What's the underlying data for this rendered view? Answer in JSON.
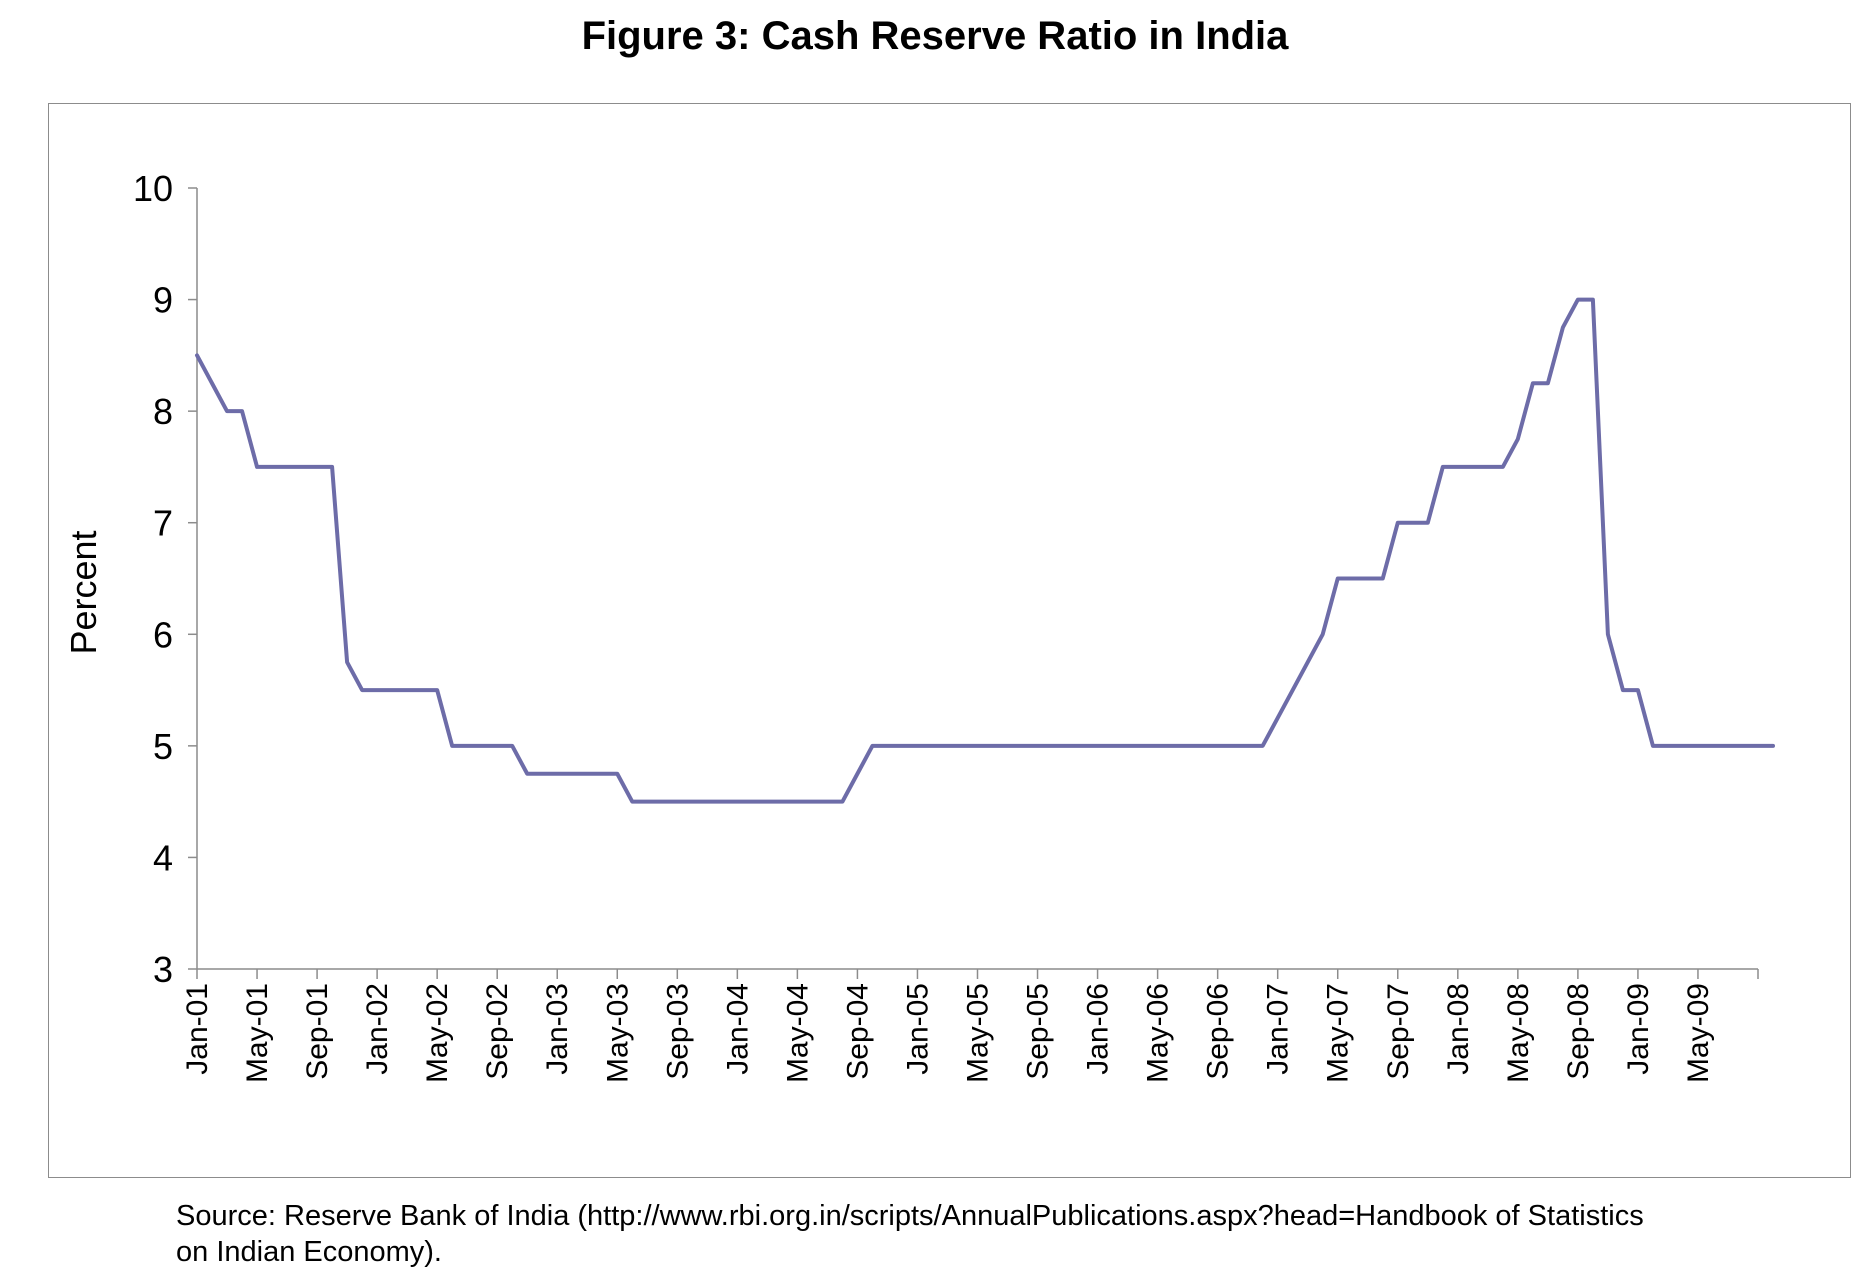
{
  "title": "Figure 3: Cash Reserve Ratio in India",
  "source_lines": [
    "Source: Reserve Bank of India (http://www.rbi.org.in/scripts/AnnualPublications.aspx?head=Handbook of Statistics",
    "on Indian Economy)."
  ],
  "colors": {
    "line": "#6d6ca8",
    "axis": "#8c8c8c",
    "frame": "#8c8c8c"
  },
  "chart_data": {
    "type": "line",
    "title": "Figure 3: Cash Reserve Ratio in India",
    "xlabel": "",
    "ylabel": "Percent",
    "ylim": [
      3,
      10
    ],
    "yticks": [
      3,
      4,
      5,
      6,
      7,
      8,
      9,
      10
    ],
    "grid": false,
    "legend": "none",
    "xtick_labels": [
      "Jan-01",
      "May-01",
      "Sep-01",
      "Jan-02",
      "May-02",
      "Sep-02",
      "Jan-03",
      "May-03",
      "Sep-03",
      "Jan-04",
      "May-04",
      "Sep-04",
      "Jan-05",
      "May-05",
      "Sep-05",
      "Jan-06",
      "May-06",
      "Sep-06",
      "Jan-07",
      "May-07",
      "Sep-07",
      "Jan-08",
      "May-08",
      "Sep-08",
      "Jan-09",
      "May-09"
    ],
    "series": [
      {
        "x": [
          "Jan-01",
          "Feb-01",
          "Mar-01",
          "Apr-01",
          "May-01",
          "Jun-01",
          "Jul-01",
          "Aug-01",
          "Sep-01",
          "Oct-01",
          "Nov-01",
          "Dec-01",
          "Jan-02",
          "Feb-02",
          "Mar-02",
          "Apr-02",
          "May-02",
          "Jun-02",
          "Jul-02",
          "Aug-02",
          "Sep-02",
          "Oct-02",
          "Nov-02",
          "Dec-02",
          "Jan-03",
          "Feb-03",
          "Mar-03",
          "Apr-03",
          "May-03",
          "Jun-03",
          "Jul-03",
          "Aug-03",
          "Sep-03",
          "Oct-03",
          "Nov-03",
          "Dec-03",
          "Jan-04",
          "Feb-04",
          "Mar-04",
          "Apr-04",
          "May-04",
          "Jun-04",
          "Jul-04",
          "Aug-04",
          "Sep-04",
          "Oct-04",
          "Nov-04",
          "Dec-04",
          "Jan-05",
          "Feb-05",
          "Mar-05",
          "Apr-05",
          "May-05",
          "Jun-05",
          "Jul-05",
          "Aug-05",
          "Sep-05",
          "Oct-05",
          "Nov-05",
          "Dec-05",
          "Jan-06",
          "Feb-06",
          "Mar-06",
          "Apr-06",
          "May-06",
          "Jun-06",
          "Jul-06",
          "Aug-06",
          "Sep-06",
          "Oct-06",
          "Nov-06",
          "Dec-06",
          "Jan-07",
          "Feb-07",
          "Mar-07",
          "Apr-07",
          "May-07",
          "Jun-07",
          "Jul-07",
          "Aug-07",
          "Sep-07",
          "Oct-07",
          "Nov-07",
          "Dec-07",
          "Jan-08",
          "Feb-08",
          "Mar-08",
          "Apr-08",
          "May-08",
          "Jun-08",
          "Jul-08",
          "Aug-08",
          "Sep-08",
          "Oct-08",
          "Nov-08",
          "Dec-08",
          "Jan-09",
          "Feb-09",
          "Mar-09",
          "Apr-09",
          "May-09",
          "Jun-09",
          "Jul-09",
          "Aug-09",
          "Sep-09",
          "Oct-09"
        ],
        "values": [
          8.5,
          8.25,
          8.0,
          8.0,
          7.5,
          7.5,
          7.5,
          7.5,
          7.5,
          7.5,
          5.75,
          5.5,
          5.5,
          5.5,
          5.5,
          5.5,
          5.5,
          5.0,
          5.0,
          5.0,
          5.0,
          5.0,
          4.75,
          4.75,
          4.75,
          4.75,
          4.75,
          4.75,
          4.75,
          4.5,
          4.5,
          4.5,
          4.5,
          4.5,
          4.5,
          4.5,
          4.5,
          4.5,
          4.5,
          4.5,
          4.5,
          4.5,
          4.5,
          4.5,
          4.75,
          5.0,
          5.0,
          5.0,
          5.0,
          5.0,
          5.0,
          5.0,
          5.0,
          5.0,
          5.0,
          5.0,
          5.0,
          5.0,
          5.0,
          5.0,
          5.0,
          5.0,
          5.0,
          5.0,
          5.0,
          5.0,
          5.0,
          5.0,
          5.0,
          5.0,
          5.0,
          5.0,
          5.25,
          5.5,
          5.75,
          6.0,
          6.5,
          6.5,
          6.5,
          6.5,
          7.0,
          7.0,
          7.0,
          7.5,
          7.5,
          7.5,
          7.5,
          7.5,
          7.75,
          8.25,
          8.25,
          8.75,
          9.0,
          9.0,
          6.0,
          5.5,
          5.5,
          5.0,
          5.0,
          5.0,
          5.0,
          5.0,
          5.0,
          5.0,
          5.0,
          5.0
        ]
      }
    ]
  }
}
